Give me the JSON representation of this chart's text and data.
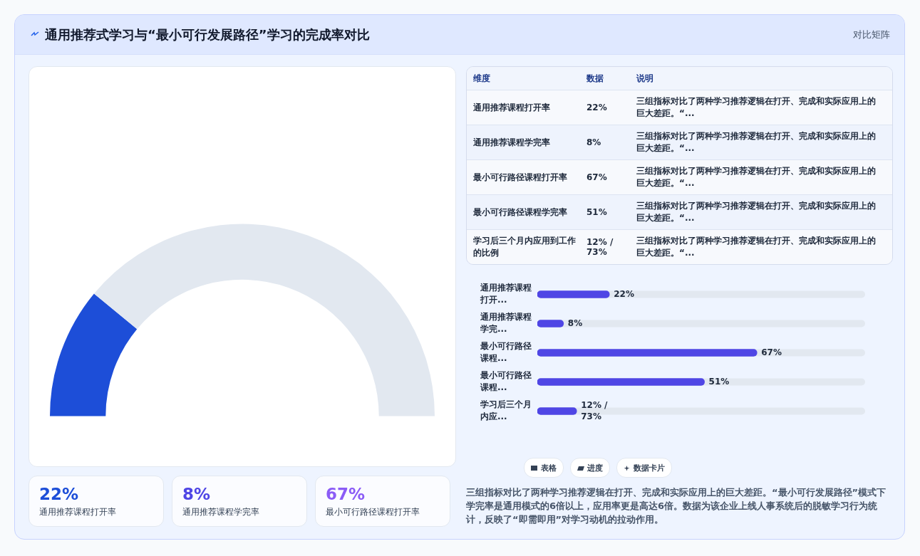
{
  "chart_data": [
    {
      "type": "other",
      "title": "通用推荐式学习与“最小可行发展路径”学习的完成率对比",
      "subtitle": "对比矩阵"
    },
    {
      "type": "donut",
      "categories": [
        null,
        null
      ],
      "values": [
        22,
        78
      ],
      "colors": [
        "#1d4ed8",
        "#e2e8f0"
      ],
      "legend": false
    },
    {
      "type": "other",
      "annotations": [
        "维度",
        "数据",
        "说明",
        "通用推荐课程打开率",
        "22%",
        "三组指标对比了两种学习推荐逻辑在打开、完成和实际应用上的巨大差距。“...",
        "通用推荐课程学完率",
        "8%",
        "三组指标对比了两种学习推荐逻辑在打开、完成和实际应用上的巨大差距。“...",
        "最小可行路径课程打开率",
        "67%",
        "三组指标对比了两种学习推荐逻辑在打开、完成和实际应用上的巨大差距。“...",
        "最小可行路径课程学完率",
        "51%",
        "三组指标对比了两种学习推荐逻辑在打开、完成和实际应用上的巨大差距。“...",
        "学习后三个月内应用到工作的比例",
        "12% / 73%",
        "三组指标对比了两种学习推荐逻辑在打开、完成和实际应用上的巨大差距。“..."
      ]
    },
    {
      "type": "bar",
      "orientation": "horizontal",
      "categories": [
        "通用推荐课程打开...",
        "通用推荐课程学完...",
        "最小可行路径课程...",
        "最小可行路径课程...",
        "学习后三个月内应..."
      ],
      "series": [
        {
          "color": "#4f46e5",
          "values": [
            22,
            8,
            67,
            51,
            12
          ],
          "value_labels": [
            "22%",
            "8%",
            "67%",
            "51%",
            "12% / 73%"
          ]
        }
      ],
      "xlim": [
        0,
        100
      ],
      "tick_labels": false,
      "legend": false
    },
    {
      "type": "other",
      "annotations": [
        "22%",
        "通用推荐课程打开率",
        "8%",
        "通用推荐课程学完率",
        "67%",
        "最小可行路径课程打开率"
      ]
    },
    {
      "type": "other",
      "annotations": [
        "表格",
        "进度",
        "数据卡片",
        "三组指标对比了两种学习推荐逻辑在打开、完成和实际应用上的巨大差距。“最小可行发展路径”模式下学完率是通用模式的6倍以上，应用率更是高达6倍。数据为该企业上线人事系统后的脱敏学习行为统计，反映了“即需即用”对学习动机的拉动作用。"
      ]
    }
  ]
}
